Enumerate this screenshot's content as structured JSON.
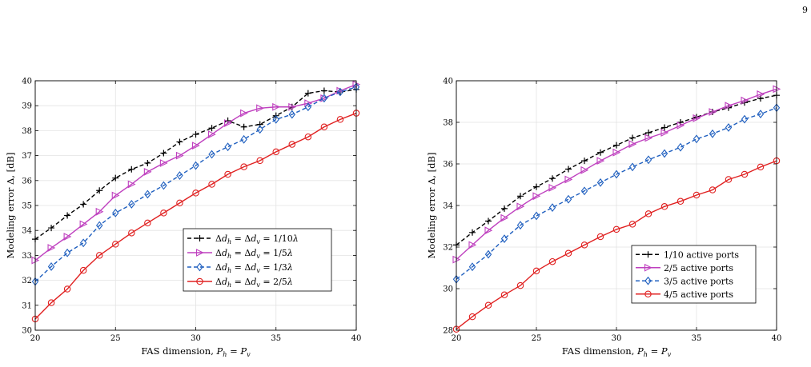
{
  "page_number": "9",
  "chart_data": [
    {
      "type": "line",
      "xlabel": "FAS dimension, P_h = P_v",
      "ylabel": "Modeling error Δ, [dB]",
      "xlim": [
        20,
        40
      ],
      "ylim": [
        30,
        40
      ],
      "xticks": [
        20,
        25,
        30,
        35,
        40
      ],
      "yticks": [
        30,
        31,
        32,
        33,
        34,
        35,
        36,
        37,
        38,
        39,
        40
      ],
      "grid": true,
      "legend_position": "bottom-right",
      "x": [
        20,
        21,
        22,
        23,
        24,
        25,
        26,
        27,
        28,
        29,
        30,
        31,
        32,
        33,
        34,
        35,
        36,
        37,
        38,
        39,
        40
      ],
      "series": [
        {
          "name": "Δd_h = Δd_v = 1/10λ",
          "color": "#000000",
          "marker": "plus",
          "dash": "dashed",
          "values": [
            33.65,
            34.1,
            34.6,
            35.05,
            35.6,
            36.1,
            36.45,
            36.7,
            37.1,
            37.55,
            37.85,
            38.1,
            38.4,
            38.15,
            38.25,
            38.6,
            38.95,
            39.5,
            39.6,
            39.55,
            39.65
          ]
        },
        {
          "name": "Δd_h = Δd_v = 1/5λ",
          "color": "#bf40bf",
          "marker": "triangle-right",
          "dash": "solid",
          "values": [
            32.8,
            33.3,
            33.75,
            34.25,
            34.75,
            35.4,
            35.85,
            36.35,
            36.7,
            37.0,
            37.4,
            37.85,
            38.3,
            38.7,
            38.9,
            38.95,
            38.95,
            39.1,
            39.3,
            39.6,
            39.85
          ]
        },
        {
          "name": "Δd_h = Δd_v = 1/3λ",
          "color": "#1f5fbf",
          "marker": "diamond",
          "dash": "dashed",
          "values": [
            31.95,
            32.55,
            33.1,
            33.5,
            34.2,
            34.7,
            35.05,
            35.45,
            35.8,
            36.2,
            36.6,
            37.05,
            37.35,
            37.65,
            38.05,
            38.45,
            38.65,
            38.95,
            39.3,
            39.55,
            39.75
          ]
        },
        {
          "name": "Δd_h = Δd_v = 2/5λ",
          "color": "#e02020",
          "marker": "circle",
          "dash": "solid",
          "values": [
            30.45,
            31.1,
            31.65,
            32.4,
            33.0,
            33.45,
            33.9,
            34.3,
            34.7,
            35.1,
            35.5,
            35.85,
            36.25,
            36.55,
            36.8,
            37.15,
            37.45,
            37.75,
            38.15,
            38.45,
            38.7
          ]
        }
      ]
    },
    {
      "type": "line",
      "xlabel": "FAS dimension, P_h = P_v",
      "ylabel": "Modeling error Δ, [dB]",
      "xlim": [
        20,
        40
      ],
      "ylim": [
        28,
        40
      ],
      "xticks": [
        20,
        25,
        30,
        35,
        40
      ],
      "yticks": [
        28,
        30,
        32,
        34,
        36,
        38,
        40
      ],
      "grid": true,
      "legend_position": "bottom-right",
      "x": [
        20,
        21,
        22,
        23,
        24,
        25,
        26,
        27,
        28,
        29,
        30,
        31,
        32,
        33,
        34,
        35,
        36,
        37,
        38,
        39,
        40
      ],
      "series": [
        {
          "name": "1/10 active ports",
          "color": "#000000",
          "marker": "plus",
          "dash": "dashed",
          "values": [
            32.1,
            32.7,
            33.25,
            33.85,
            34.45,
            34.9,
            35.3,
            35.75,
            36.15,
            36.55,
            36.9,
            37.25,
            37.5,
            37.75,
            38.0,
            38.25,
            38.5,
            38.7,
            38.95,
            39.15,
            39.3
          ]
        },
        {
          "name": "2/5 active ports",
          "color": "#bf40bf",
          "marker": "triangle-right",
          "dash": "solid",
          "values": [
            31.4,
            32.1,
            32.8,
            33.4,
            33.95,
            34.45,
            34.85,
            35.25,
            35.7,
            36.15,
            36.55,
            36.95,
            37.25,
            37.5,
            37.85,
            38.2,
            38.5,
            38.8,
            39.05,
            39.35,
            39.6
          ]
        },
        {
          "name": "3/5 active ports",
          "color": "#1f5fbf",
          "marker": "diamond",
          "dash": "dashed",
          "values": [
            30.45,
            31.05,
            31.65,
            32.4,
            33.05,
            33.5,
            33.9,
            34.3,
            34.7,
            35.1,
            35.5,
            35.85,
            36.2,
            36.5,
            36.8,
            37.2,
            37.45,
            37.75,
            38.15,
            38.4,
            38.7
          ]
        },
        {
          "name": "4/5 active ports",
          "color": "#e02020",
          "marker": "circle",
          "dash": "solid",
          "values": [
            28.05,
            28.65,
            29.2,
            29.7,
            30.15,
            30.85,
            31.3,
            31.7,
            32.1,
            32.5,
            32.85,
            33.1,
            33.6,
            33.95,
            34.2,
            34.5,
            34.75,
            35.25,
            35.5,
            35.85,
            36.15
          ]
        }
      ]
    }
  ]
}
